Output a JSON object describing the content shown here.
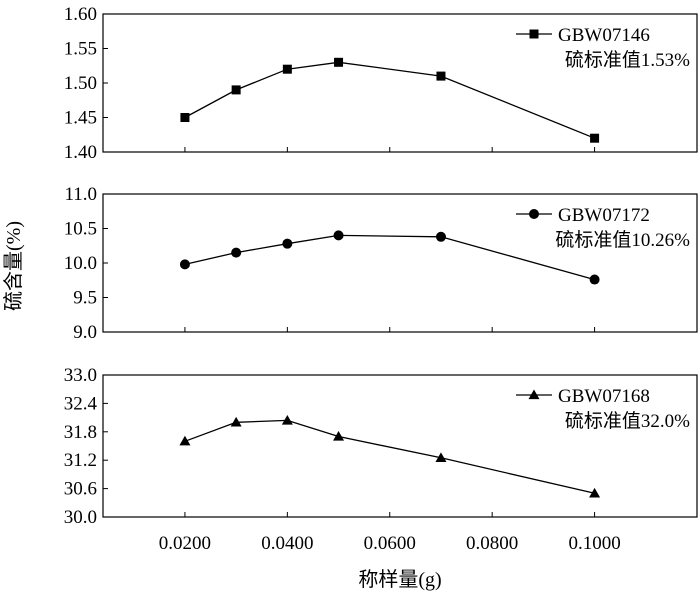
{
  "chart_data": {
    "type": "line",
    "xlabel": "称样量(g)",
    "ylabel": "硫含量(%)",
    "x_ticks": [
      0.02,
      0.04,
      0.06,
      0.08,
      0.1
    ],
    "x_tick_labels": [
      "0.0200",
      "0.0400",
      "0.0600",
      "0.0800",
      "0.1000"
    ],
    "xlim": [
      0.004,
      0.12
    ],
    "grid": false,
    "legend_position": "top-right",
    "panels": [
      {
        "series_name": "GBW07146",
        "standard_note": "硫标准值1.53%",
        "marker": "square",
        "x": [
          0.02,
          0.03,
          0.04,
          0.05,
          0.07,
          0.1
        ],
        "y": [
          1.45,
          1.49,
          1.52,
          1.53,
          1.51,
          1.42
        ],
        "ylim": [
          1.4,
          1.6
        ],
        "y_ticks": [
          1.4,
          1.45,
          1.5,
          1.55,
          1.6
        ],
        "y_tick_labels": [
          "1.40",
          "1.45",
          "1.50",
          "1.55",
          "1.60"
        ]
      },
      {
        "series_name": "GBW07172",
        "standard_note": "硫标准值10.26%",
        "marker": "circle",
        "x": [
          0.02,
          0.03,
          0.04,
          0.05,
          0.07,
          0.1
        ],
        "y": [
          9.98,
          10.15,
          10.28,
          10.4,
          10.38,
          9.76
        ],
        "ylim": [
          9.0,
          11.0
        ],
        "y_ticks": [
          9.0,
          9.5,
          10.0,
          10.5,
          11.0
        ],
        "y_tick_labels": [
          "9.0",
          "9.5",
          "10.0",
          "10.5",
          "11.0"
        ]
      },
      {
        "series_name": "GBW07168",
        "standard_note": "硫标准值32.0%",
        "marker": "triangle",
        "x": [
          0.02,
          0.03,
          0.04,
          0.05,
          0.07,
          0.1
        ],
        "y": [
          31.6,
          32.0,
          32.04,
          31.7,
          31.25,
          30.5
        ],
        "ylim": [
          30.0,
          33.0
        ],
        "y_ticks": [
          30.0,
          30.6,
          31.2,
          31.8,
          32.4,
          33.0
        ],
        "y_tick_labels": [
          "30.0",
          "30.6",
          "31.2",
          "31.8",
          "32.4",
          "33.0"
        ]
      }
    ]
  }
}
